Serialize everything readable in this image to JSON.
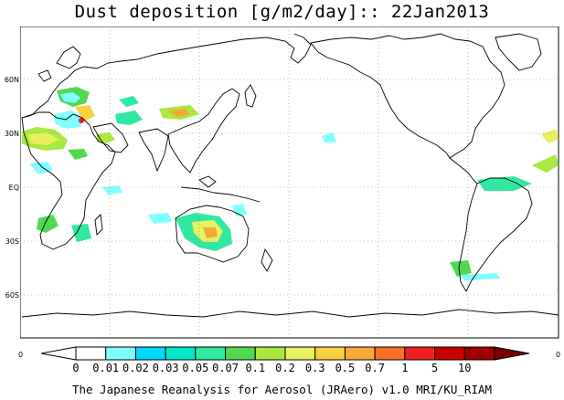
{
  "title": "Dust deposition [g/m2/day]:: 22Jan2013",
  "lat_labels": [
    "60N",
    "30N",
    "EQ",
    "30S",
    "60S"
  ],
  "lon_edge_labels": [
    "0",
    "0"
  ],
  "colorbar": {
    "colors": [
      "#ffffff",
      "#ffffff",
      "#80ffff",
      "#00d8f8",
      "#00e8c8",
      "#30e8a0",
      "#50d850",
      "#a8e840",
      "#e8f060",
      "#f8d040",
      "#f8a838",
      "#f87028",
      "#f02020",
      "#c80000",
      "#a00000",
      "#780000"
    ],
    "labels": [
      "0",
      "0.01",
      "0.02",
      "0.03",
      "0.05",
      "0.07",
      "0.1",
      "0.2",
      "0.3",
      "0.5",
      "0.7",
      "1",
      "5",
      "10"
    ]
  },
  "footer": "The Japanese Reanalysis for Aerosol (JRAero) v1.0 MRI/KU_RIAM"
}
